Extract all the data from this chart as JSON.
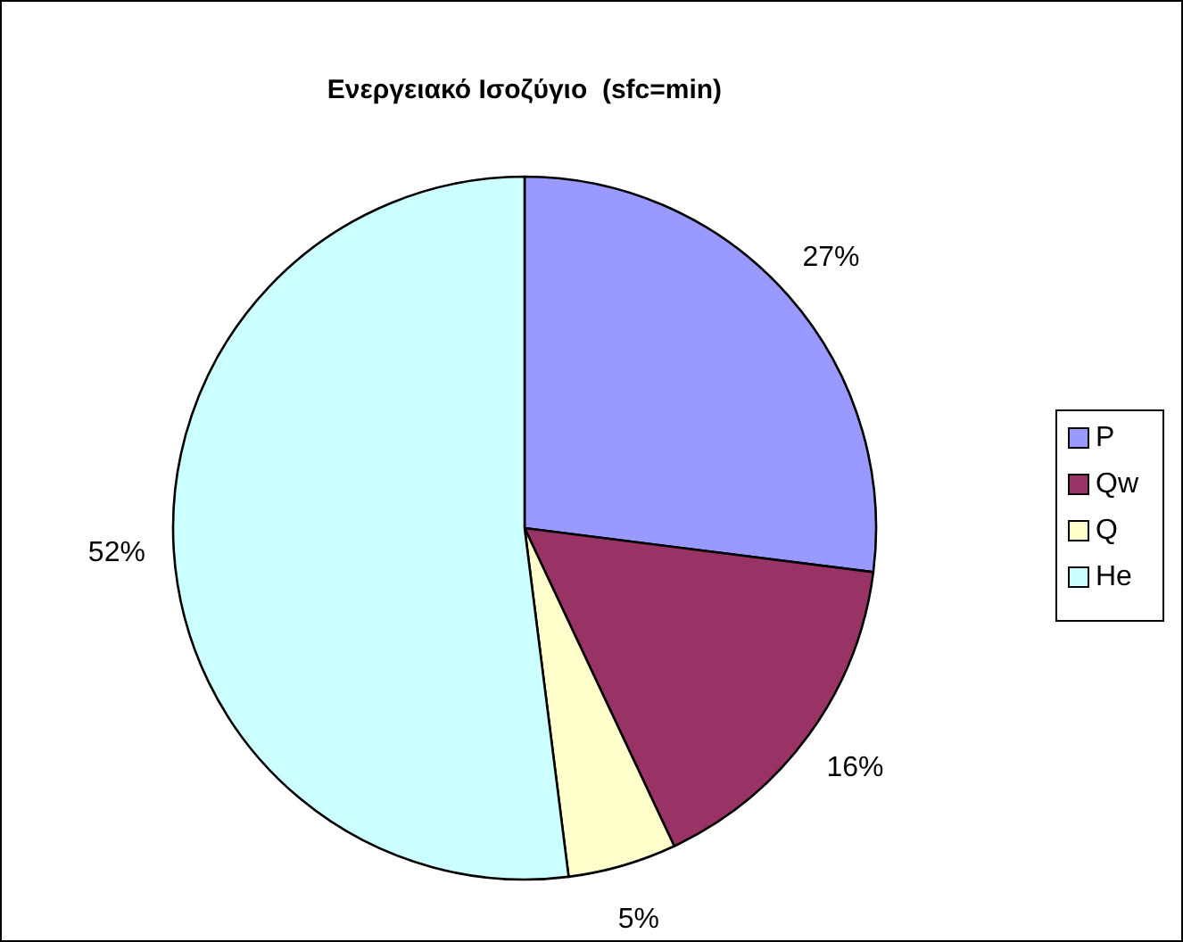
{
  "chart_data": {
    "type": "pie",
    "title": "Ενεργειακό Ισοζύγιο  (sfc=min)",
    "categories": [
      "P",
      "Qw",
      "Q",
      "He"
    ],
    "values": [
      27,
      16,
      5,
      52
    ],
    "value_labels": [
      "27%",
      "16%",
      "5%",
      "52%"
    ],
    "colors": [
      "#9999ff",
      "#993366",
      "#ffffcc",
      "#ccffff"
    ],
    "legend": "right"
  }
}
